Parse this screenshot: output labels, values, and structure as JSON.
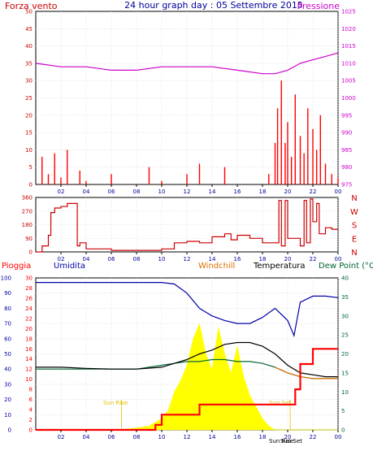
{
  "header": {
    "left": "Forza vento",
    "center": "24 hour graph day : 05 Settembre 2015",
    "right": "Pressione"
  },
  "colors": {
    "wind": "#cc0000",
    "gust": "#ff0000",
    "pressure": "#cc00cc",
    "direction": "#cc0000",
    "rain": "#ff0000",
    "humidity": "#0000aa",
    "windchill": "#e07000",
    "temperature": "#000000",
    "dewpoint": "#006633",
    "solar": "#ffff00",
    "axis": "#000000"
  },
  "chart_data": [
    {
      "type": "line",
      "panel": "wind-pressure",
      "x_ticks": [
        "02",
        "04",
        "06",
        "08",
        "10",
        "12",
        "14",
        "16",
        "18",
        "20",
        "22",
        "00"
      ],
      "left_axis": {
        "title": "Forza vento",
        "ticks": [
          "0",
          "5",
          "10",
          "15",
          "20",
          "25",
          "30",
          "35",
          "40",
          "45",
          "50"
        ],
        "ylim": [
          0,
          50
        ]
      },
      "right_axis": {
        "title": "Pressione",
        "ticks": [
          "975",
          "980",
          "985",
          "990",
          "995",
          "1000",
          "1005",
          "1010",
          "1015",
          "1020",
          "1025"
        ],
        "ylim": [
          975,
          1025
        ]
      },
      "series": [
        {
          "name": "Pressione",
          "x": [
            0,
            2,
            4,
            6,
            8,
            10,
            12,
            14,
            16,
            18,
            19,
            20,
            21,
            22,
            23,
            24
          ],
          "values": [
            1010,
            1009,
            1009,
            1008,
            1008,
            1009,
            1009,
            1009,
            1008,
            1007,
            1007,
            1008,
            1010,
            1011,
            1012,
            1013
          ]
        },
        {
          "name": "Forza vento",
          "x": [
            0,
            0.5,
            1,
            1.5,
            2,
            2.5,
            3,
            3.5,
            4,
            5,
            6,
            7,
            8,
            9,
            10,
            11,
            12,
            13,
            14,
            15,
            16,
            17,
            18,
            18.5,
            19,
            19.2,
            19.5,
            19.8,
            20,
            20.3,
            20.6,
            21,
            21.3,
            21.6,
            22,
            22.3,
            22.6,
            23,
            23.5,
            24
          ],
          "values": [
            0,
            8,
            3,
            9,
            2,
            10,
            0,
            4,
            1,
            0,
            3,
            0,
            0,
            5,
            1,
            0,
            3,
            6,
            0,
            5,
            0,
            0,
            0,
            3,
            12,
            22,
            30,
            12,
            18,
            8,
            26,
            14,
            9,
            22,
            16,
            10,
            20,
            6,
            3,
            2
          ]
        }
      ]
    },
    {
      "type": "line",
      "panel": "wind-direction",
      "x_ticks": [
        "02",
        "04",
        "06",
        "08",
        "10",
        "12",
        "14",
        "16",
        "18",
        "20",
        "22",
        "00"
      ],
      "left_axis": {
        "ticks": [
          "0",
          "90",
          "180",
          "270",
          "360"
        ],
        "ylim": [
          0,
          360
        ]
      },
      "right_axis": {
        "ticks": [
          "N",
          "W",
          "S",
          "E",
          "N"
        ]
      },
      "series": [
        {
          "name": "Direzione",
          "x": [
            0,
            0.5,
            1,
            1.2,
            1.5,
            2,
            2.5,
            3,
            3.3,
            3.5,
            4,
            6,
            8,
            10,
            11,
            12,
            13,
            14,
            15,
            15.5,
            16,
            17,
            18,
            19,
            19.3,
            19.5,
            19.8,
            20,
            21,
            21.3,
            21.5,
            21.8,
            22,
            22.3,
            22.5,
            23,
            23.5,
            24
          ],
          "values": [
            0,
            40,
            110,
            260,
            290,
            300,
            320,
            320,
            40,
            60,
            20,
            10,
            10,
            20,
            60,
            70,
            60,
            100,
            120,
            80,
            110,
            90,
            60,
            60,
            340,
            40,
            340,
            90,
            40,
            340,
            60,
            350,
            200,
            320,
            120,
            160,
            150,
            150
          ]
        }
      ]
    },
    {
      "type": "line",
      "panel": "rain-humidity-temperature",
      "titles": [
        "Pioggia",
        "Umidita",
        "Windchill",
        "Temperatura",
        "Dew Point (°C"
      ],
      "annotations": [
        "Sun Rise",
        "Sun Set",
        "Sun Rise",
        "Sun Set"
      ],
      "x_ticks": [
        "02",
        "04",
        "06",
        "08",
        "10",
        "12",
        "14",
        "16",
        "18",
        "20",
        "22",
        "00"
      ],
      "left_axis_outer": {
        "title": "Umidita",
        "ticks": [
          "0",
          "10",
          "20",
          "30",
          "40",
          "50",
          "60",
          "70",
          "80",
          "90",
          "100"
        ],
        "ylim": [
          0,
          100
        ]
      },
      "left_axis_inner": {
        "title": "Pioggia",
        "ticks": [
          "0",
          "2",
          "4",
          "6",
          "8",
          "10",
          "12",
          "14",
          "16",
          "18",
          "20",
          "22",
          "24",
          "26",
          "28",
          "30"
        ],
        "ylim": [
          0,
          30
        ]
      },
      "right_axis": {
        "title": "Dew Point (°C",
        "ticks": [
          "0",
          "5",
          "10",
          "15",
          "20",
          "25",
          "30",
          "35",
          "40"
        ],
        "ylim": [
          0,
          40
        ]
      },
      "series": [
        {
          "name": "Umidita",
          "x": [
            0,
            2,
            4,
            6,
            8,
            10,
            11,
            12,
            13,
            14,
            15,
            16,
            17,
            18,
            19,
            20,
            20.5,
            21,
            22,
            23,
            24
          ],
          "values": [
            97,
            97,
            97,
            97,
            97,
            97,
            96,
            90,
            80,
            75,
            72,
            70,
            70,
            74,
            80,
            72,
            62,
            84,
            88,
            88,
            87
          ]
        },
        {
          "name": "Pioggia",
          "x": [
            0,
            8,
            9,
            9.5,
            10,
            11,
            12,
            13,
            14,
            15,
            16,
            17,
            18,
            19,
            20,
            20.6,
            21,
            22,
            23,
            24
          ],
          "values": [
            0,
            0,
            0,
            1,
            3,
            3,
            3,
            5,
            5,
            5,
            5,
            5,
            5,
            5,
            5,
            8,
            13,
            16,
            16,
            16
          ]
        },
        {
          "name": "Temperatura",
          "x": [
            0,
            2,
            4,
            6,
            8,
            10,
            11,
            12,
            13,
            14,
            15,
            16,
            17,
            18,
            19,
            20,
            21,
            22,
            23,
            24
          ],
          "values": [
            16.5,
            16.5,
            16.2,
            16,
            16,
            16.5,
            17.5,
            18.5,
            20,
            21,
            22.5,
            23,
            23,
            22,
            20,
            17,
            15,
            14.5,
            14,
            14
          ]
        },
        {
          "name": "Dew Point",
          "x": [
            0,
            2,
            4,
            6,
            8,
            10,
            11,
            12,
            13,
            14,
            15,
            16,
            17,
            18,
            19,
            20,
            21,
            22,
            23,
            24
          ],
          "values": [
            16,
            16,
            16,
            16,
            16,
            17,
            17.5,
            18,
            18,
            18.5,
            18.5,
            18,
            18,
            17.5,
            16.5,
            15,
            14,
            13.5,
            13.5,
            13.5
          ]
        },
        {
          "name": "Windchill",
          "x": [
            19,
            20,
            21,
            22,
            23,
            24
          ],
          "values": [
            16.5,
            15,
            14,
            13.5,
            13.5,
            13.5
          ]
        },
        {
          "name": "Solar",
          "x": [
            0,
            6.5,
            7,
            8,
            9,
            9.5,
            10,
            10.5,
            11,
            11.5,
            12,
            12.5,
            13,
            13.5,
            14,
            14.5,
            15,
            15.5,
            16,
            16.5,
            17,
            17.5,
            18,
            18.5,
            19,
            24
          ],
          "values": [
            0,
            0,
            0.2,
            0.5,
            1,
            2,
            3,
            5,
            10,
            13,
            17,
            24,
            28,
            20,
            16,
            27,
            20,
            15,
            22,
            14,
            9,
            6,
            3,
            1,
            0,
            0
          ]
        }
      ]
    }
  ]
}
